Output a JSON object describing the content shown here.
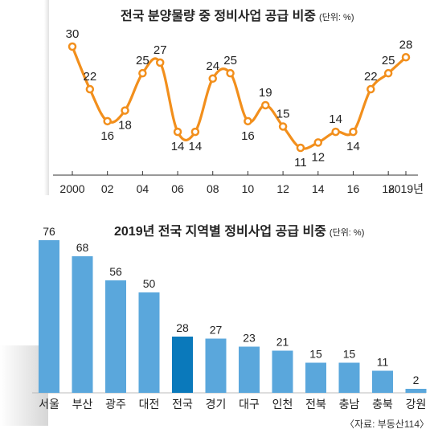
{
  "chart_data": [
    {
      "type": "line",
      "title": "전국 분양물량 중 정비사업 공급 비중",
      "unit": "(단위: %)",
      "x": [
        2000,
        2001,
        2002,
        2003,
        2004,
        2005,
        2006,
        2007,
        2008,
        2009,
        2010,
        2011,
        2012,
        2013,
        2014,
        2015,
        2016,
        2017,
        2018,
        2019
      ],
      "values": [
        30,
        22,
        16,
        18,
        25,
        27,
        14,
        14,
        24,
        25,
        16,
        19,
        15,
        11,
        12,
        14,
        14,
        22,
        25,
        28
      ],
      "x_tick_labels": [
        "2000",
        "02",
        "04",
        "06",
        "08",
        "10",
        "12",
        "14",
        "16",
        "18",
        "2019년"
      ],
      "x_tick_years": [
        2000,
        2002,
        2004,
        2006,
        2008,
        2010,
        2012,
        2014,
        2016,
        2018,
        2019
      ],
      "ylim": [
        8,
        32
      ],
      "line_color": "#f28f1c",
      "marker_fill": "#ffffff",
      "grid": false
    },
    {
      "type": "bar",
      "title": "2019년 전국 지역별 정비사업 공급 비중",
      "unit": "(단위: %)",
      "categories": [
        "서울",
        "부산",
        "광주",
        "대전",
        "전국",
        "경기",
        "대구",
        "인천",
        "전북",
        "충남",
        "충북",
        "강원"
      ],
      "values": [
        76,
        68,
        56,
        50,
        28,
        27,
        23,
        21,
        15,
        15,
        11,
        2
      ],
      "highlight_category": "전국",
      "bar_color": "#5aa7dc",
      "highlight_color": "#0a79bb",
      "ylim": [
        0,
        80
      ]
    }
  ],
  "source": "〈자료: 부동산114〉"
}
